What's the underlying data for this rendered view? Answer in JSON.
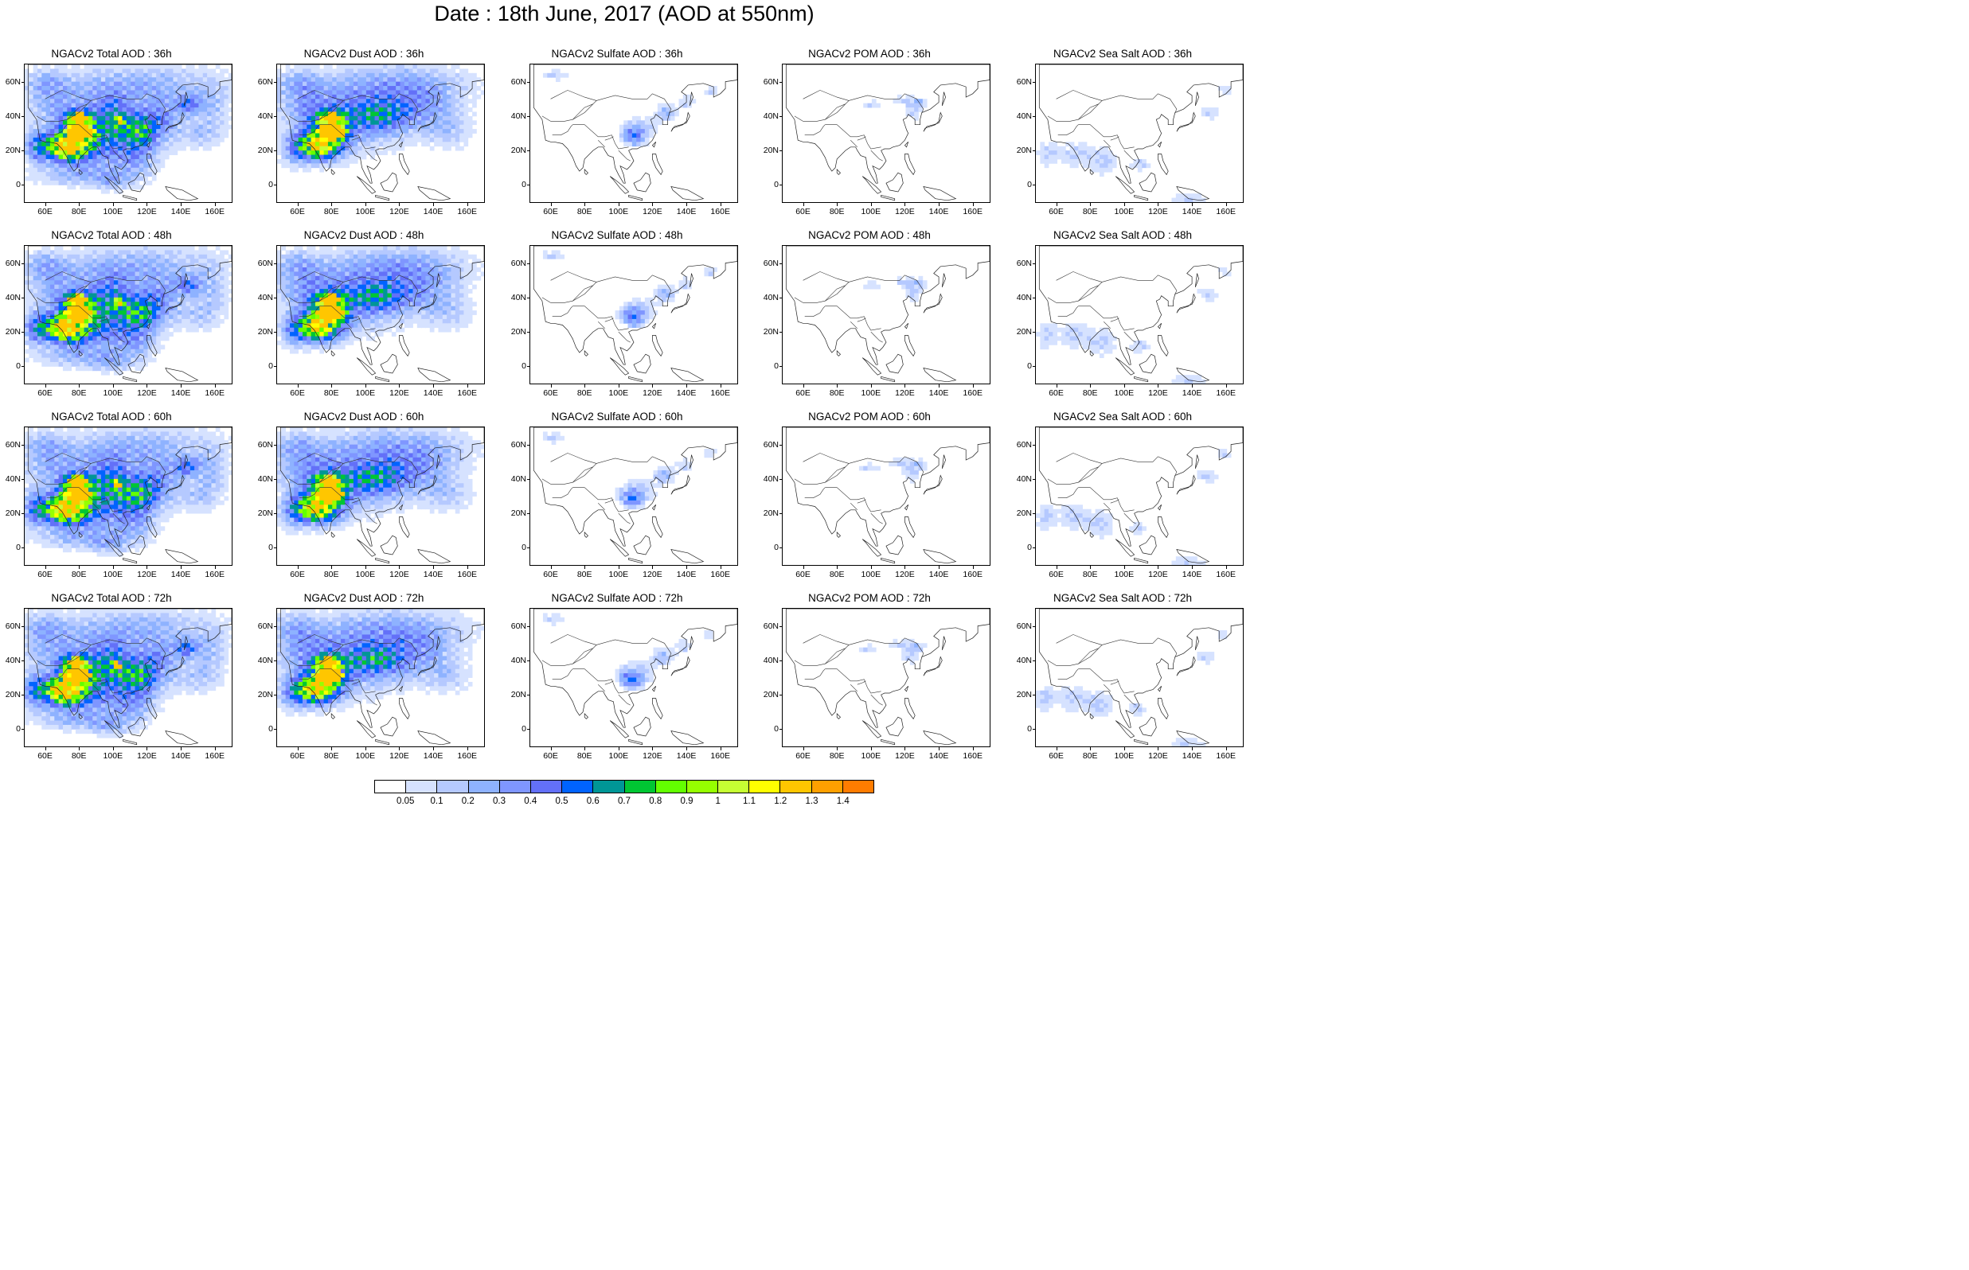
{
  "title": "Date : 18th June, 2017 (AOD at 550nm)",
  "lat_labels": [
    "60N",
    "40N",
    "20N",
    "0"
  ],
  "lon_labels": [
    "60E",
    "80E",
    "100E",
    "120E",
    "140E",
    "160E"
  ],
  "columns": [
    "total",
    "dust",
    "sulfate",
    "pom",
    "seasalt"
  ],
  "panels": [
    {
      "title": "NGACv2 Total AOD : 36h",
      "species": "total"
    },
    {
      "title": "NGACv2 Dust AOD : 36h",
      "species": "dust"
    },
    {
      "title": "NGACv2 Sulfate AOD : 36h",
      "species": "sulfate"
    },
    {
      "title": "NGACv2 POM AOD : 36h",
      "species": "pom"
    },
    {
      "title": "NGACv2 Sea Salt AOD : 36h",
      "species": "seasalt"
    },
    {
      "title": "NGACv2 Total AOD : 48h",
      "species": "total"
    },
    {
      "title": "NGACv2 Dust AOD : 48h",
      "species": "dust"
    },
    {
      "title": "NGACv2 Sulfate AOD : 48h",
      "species": "sulfate"
    },
    {
      "title": "NGACv2 POM AOD : 48h",
      "species": "pom"
    },
    {
      "title": "NGACv2 Sea Salt AOD : 48h",
      "species": "seasalt"
    },
    {
      "title": "NGACv2 Total AOD : 60h",
      "species": "total"
    },
    {
      "title": "NGACv2 Dust AOD : 60h",
      "species": "dust"
    },
    {
      "title": "NGACv2 Sulfate AOD : 60h",
      "species": "sulfate"
    },
    {
      "title": "NGACv2 POM AOD : 60h",
      "species": "pom"
    },
    {
      "title": "NGACv2 Sea Salt AOD : 60h",
      "species": "seasalt"
    },
    {
      "title": "NGACv2 Total AOD : 72h",
      "species": "total"
    },
    {
      "title": "NGACv2 Dust AOD : 72h",
      "species": "dust"
    },
    {
      "title": "NGACv2 Sulfate AOD : 72h",
      "species": "sulfate"
    },
    {
      "title": "NGACv2 POM AOD : 72h",
      "species": "pom"
    },
    {
      "title": "NGACv2 Sea Salt  AOD : 72h",
      "species": "seasalt"
    }
  ],
  "colorbar": {
    "labels": [
      "0.05",
      "0.1",
      "0.2",
      "0.3",
      "0.4",
      "0.5",
      "0.6",
      "0.7",
      "0.8",
      "0.9",
      "1",
      "1.1",
      "1.2",
      "1.3",
      "1.4"
    ],
    "colors": [
      "#ffffff",
      "#d6e2ff",
      "#b5c9ff",
      "#8eb2ff",
      "#7f96ff",
      "#6370f8",
      "#0063ff",
      "#009696",
      "#00c633",
      "#63ff00",
      "#96ff00",
      "#c6ff33",
      "#ffff00",
      "#ffc600",
      "#ffa000",
      "#ff7c00",
      "#ff1900"
    ]
  }
}
